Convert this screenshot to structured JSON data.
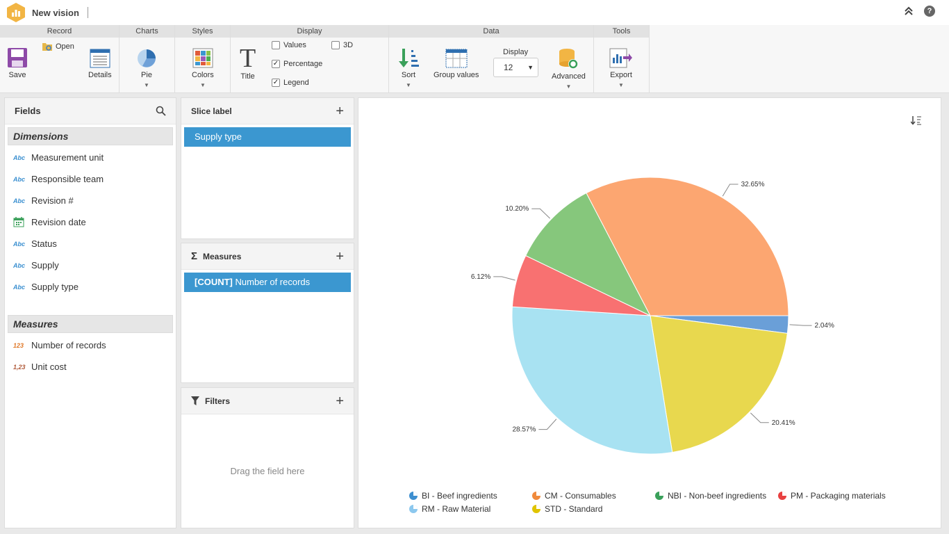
{
  "app": {
    "title": "New vision"
  },
  "ribbon": {
    "groups": {
      "record": "Record",
      "charts": "Charts",
      "styles": "Styles",
      "display": "Display",
      "data": "Data",
      "tools": "Tools"
    },
    "save": "Save",
    "open": "Open",
    "details": "Details",
    "pie": "Pie",
    "colors": "Colors",
    "title": "Title",
    "values": "Values",
    "percentage": "Percentage",
    "legend": "Legend",
    "three_d": "3D",
    "sort": "Sort",
    "group_values": "Group values",
    "display_label": "Display",
    "display_value": "12",
    "advanced": "Advanced",
    "export": "Export",
    "checks": {
      "values": false,
      "percentage": true,
      "legend": true,
      "three_d": false
    }
  },
  "fields": {
    "title": "Fields",
    "dimensions_label": "Dimensions",
    "dimensions": [
      {
        "type": "Abc",
        "name": "Measurement unit"
      },
      {
        "type": "Abc",
        "name": "Responsible team"
      },
      {
        "type": "Abc",
        "name": "Revision #"
      },
      {
        "type": "date",
        "name": "Revision date"
      },
      {
        "type": "Abc",
        "name": "Status"
      },
      {
        "type": "Abc",
        "name": "Supply"
      },
      {
        "type": "Abc",
        "name": "Supply type"
      }
    ],
    "measures_label": "Measures",
    "measures": [
      {
        "type": "123",
        "name": "Number of records"
      },
      {
        "type": "1,23",
        "name": "Unit cost"
      }
    ]
  },
  "slice_label": {
    "title": "Slice label",
    "chip": "Supply type"
  },
  "measures_panel": {
    "title": "Measures",
    "chip_bold": "[COUNT]",
    "chip_rest": " Number of records"
  },
  "filters": {
    "title": "Filters",
    "hint": "Drag the field here"
  },
  "chart_data": {
    "type": "pie",
    "slices": [
      {
        "name": "BI - Beef ingredients",
        "value": 2.04,
        "label": "2.04%",
        "color": "#6a9fd8"
      },
      {
        "name": "STD - Standard",
        "value": 20.41,
        "label": "20.41%",
        "color": "#e8d84e"
      },
      {
        "name": "RM - Raw Material",
        "value": 28.57,
        "label": "28.57%",
        "color": "#a8e2f2"
      },
      {
        "name": "PM - Packaging materials",
        "value": 6.12,
        "label": "6.12%",
        "color": "#f87171"
      },
      {
        "name": "NBI - Non-beef ingredients",
        "value": 10.2,
        "label": "10.20%",
        "color": "#86c77c"
      },
      {
        "name": "CM - Consumables",
        "value": 32.65,
        "label": "32.65%",
        "color": "#fca671"
      }
    ],
    "legend": [
      {
        "name": "BI - Beef ingredients",
        "color": "#3d8fd0"
      },
      {
        "name": "CM - Consumables",
        "color": "#f08a3c"
      },
      {
        "name": "NBI - Non-beef ingredients",
        "color": "#3aa05a"
      },
      {
        "name": "PM - Packaging materials",
        "color": "#e84040"
      },
      {
        "name": "RM - Raw Material",
        "color": "#8cc8ee"
      },
      {
        "name": "STD - Standard",
        "color": "#e0c400"
      }
    ],
    "legend_placement": "bottom"
  }
}
